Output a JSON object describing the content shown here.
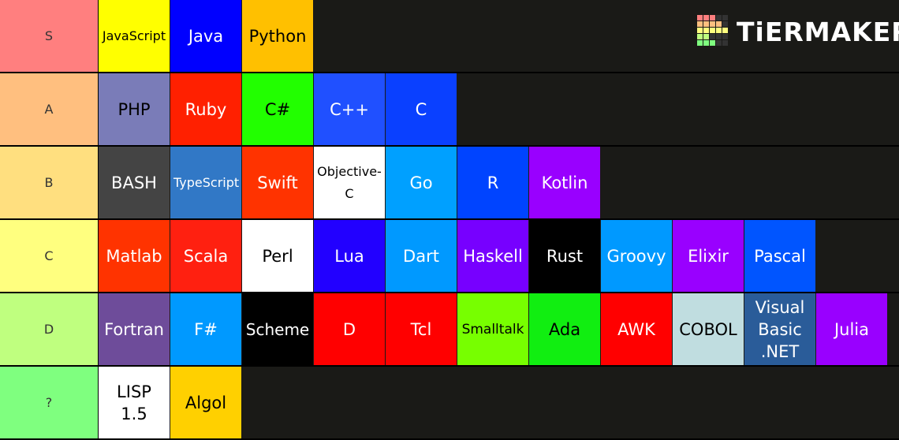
{
  "logo": "TiERMAKER",
  "tiers": [
    {
      "label": "S",
      "color": "#ff7f7f",
      "items": [
        {
          "text": "JavaScript",
          "color": "#ffff00",
          "text_color": "#000000"
        },
        {
          "text": "Java",
          "color": "#0000ff",
          "text_color": "#ffffff"
        },
        {
          "text": "Python",
          "color": "#ffc000",
          "text_color": "#000000"
        }
      ]
    },
    {
      "label": "A",
      "color": "#ffbf7f",
      "items": [
        {
          "text": "PHP",
          "color": "#7a7cb8",
          "text_color": "#000000"
        },
        {
          "text": "Ruby",
          "color": "#ff2000",
          "text_color": "#ffffff"
        },
        {
          "text": "C#",
          "color": "#22ff00",
          "text_color": "#000000"
        },
        {
          "text": "C++",
          "color": "#2050ff",
          "text_color": "#ffffff"
        },
        {
          "text": "C",
          "color": "#0a40ff",
          "text_color": "#ffffff"
        }
      ]
    },
    {
      "label": "B",
      "color": "#ffdf7f",
      "items": [
        {
          "text": "BASH",
          "color": "#444444",
          "text_color": "#ffffff"
        },
        {
          "text": "TypeScript",
          "color": "#3178c6",
          "text_color": "#ffffff"
        },
        {
          "text": "Swift",
          "color": "#ff3300",
          "text_color": "#ffffff"
        },
        {
          "text": "Objective-C",
          "color": "#ffffff",
          "text_color": "#000000"
        },
        {
          "text": "Go",
          "color": "#00a0ff",
          "text_color": "#ffffff"
        },
        {
          "text": "R",
          "color": "#0044ff",
          "text_color": "#ffffff"
        },
        {
          "text": "Kotlin",
          "color": "#9900ff",
          "text_color": "#ffffff"
        }
      ]
    },
    {
      "label": "C",
      "color": "#ffff7f",
      "items": [
        {
          "text": "Matlab",
          "color": "#ff3300",
          "text_color": "#ffffff"
        },
        {
          "text": "Scala",
          "color": "#ff2010",
          "text_color": "#ffffff"
        },
        {
          "text": "Perl",
          "color": "#ffffff",
          "text_color": "#000000"
        },
        {
          "text": "Lua",
          "color": "#2200ff",
          "text_color": "#ffffff"
        },
        {
          "text": "Dart",
          "color": "#0099ff",
          "text_color": "#ffffff"
        },
        {
          "text": "Haskell",
          "color": "#7700ff",
          "text_color": "#ffffff"
        },
        {
          "text": "Rust",
          "color": "#000000",
          "text_color": "#ffffff"
        },
        {
          "text": "Groovy",
          "color": "#0099ff",
          "text_color": "#ffffff"
        },
        {
          "text": "Elixir",
          "color": "#9900ff",
          "text_color": "#ffffff"
        },
        {
          "text": "Pascal",
          "color": "#0055ff",
          "text_color": "#ffffff"
        }
      ]
    },
    {
      "label": "D",
      "color": "#bfff7f",
      "items": [
        {
          "text": "Fortran",
          "color": "#6e4c9a",
          "text_color": "#ffffff"
        },
        {
          "text": "F#",
          "color": "#0099ff",
          "text_color": "#ffffff"
        },
        {
          "text": "Scheme",
          "color": "#000000",
          "text_color": "#ffffff"
        },
        {
          "text": "D",
          "color": "#ff0000",
          "text_color": "#ffffff"
        },
        {
          "text": "Tcl",
          "color": "#ff0000",
          "text_color": "#ffffff"
        },
        {
          "text": "Smalltalk",
          "color": "#77ff00",
          "text_color": "#000000"
        },
        {
          "text": "Ada",
          "color": "#11ee11",
          "text_color": "#000000"
        },
        {
          "text": "AWK",
          "color": "#ff0000",
          "text_color": "#ffffff"
        },
        {
          "text": "COBOL",
          "color": "#c0dde0",
          "text_color": "#000000"
        },
        {
          "text": "Visual Basic .NET",
          "color": "#2a5c99",
          "text_color": "#ffffff"
        },
        {
          "text": "Julia",
          "color": "#9900ff",
          "text_color": "#ffffff"
        }
      ]
    },
    {
      "label": "?",
      "color": "#7fff7f",
      "items": [
        {
          "text": "LISP 1.5",
          "color": "#ffffff",
          "text_color": "#000000"
        },
        {
          "text": "Algol",
          "color": "#ffd000",
          "text_color": "#000000"
        }
      ]
    }
  ]
}
